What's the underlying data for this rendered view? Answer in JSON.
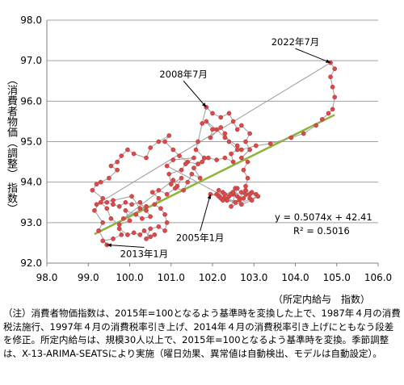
{
  "chart_data": {
    "type": "scatter",
    "ylabel": "（消費者物価（調整） 指数）",
    "xlabel": "（所定内給与　指数）",
    "xlim": [
      98.0,
      106.0
    ],
    "ylim": [
      92.0,
      98.0
    ],
    "xticks": [
      "98.0",
      "99.0",
      "100.0",
      "101.0",
      "102.0",
      "103.0",
      "104.0",
      "105.0",
      "106.0"
    ],
    "yticks": [
      "92.0",
      "93.0",
      "94.0",
      "95.0",
      "96.0",
      "97.0",
      "98.0"
    ],
    "grid": "horizontal",
    "point_color": "#d94a4a",
    "path_color": "#9e9e9e",
    "trend_color": "#8db33a",
    "trendline": {
      "slope": 0.5074,
      "intercept": 42.41,
      "x_range": [
        99.15,
        104.95
      ]
    },
    "equation": "y = 0.5074x + 42.41",
    "r2_label": "R² = 0.5016",
    "annotations": [
      {
        "text": "2022年7月",
        "x": 104.85,
        "y": 96.95,
        "tx": 104.0,
        "ty": 97.38
      },
      {
        "text": "2008年7月",
        "x": 101.85,
        "y": 95.85,
        "tx": 101.3,
        "ty": 96.58
      },
      {
        "text": "2005年1月",
        "x": 101.95,
        "y": 93.7,
        "tx": 101.7,
        "ty": 92.55
      },
      {
        "text": "2013年1月",
        "x": 99.45,
        "y": 92.45,
        "tx": 100.35,
        "ty": 92.15
      }
    ],
    "points": [
      [
        102.8,
        93.7
      ],
      [
        102.7,
        93.75
      ],
      [
        102.5,
        93.7
      ],
      [
        102.4,
        93.65
      ],
      [
        102.25,
        93.75
      ],
      [
        102.1,
        93.7
      ],
      [
        101.95,
        93.7
      ],
      [
        102.15,
        93.65
      ],
      [
        102.3,
        93.6
      ],
      [
        102.45,
        93.7
      ],
      [
        102.6,
        93.65
      ],
      [
        102.75,
        93.6
      ],
      [
        102.9,
        93.7
      ],
      [
        103.05,
        93.7
      ],
      [
        102.95,
        93.75
      ],
      [
        102.8,
        93.8
      ],
      [
        102.65,
        93.6
      ],
      [
        102.5,
        93.75
      ],
      [
        102.3,
        93.7
      ],
      [
        102.2,
        93.6
      ],
      [
        102.55,
        93.85
      ],
      [
        102.9,
        93.6
      ],
      [
        102.8,
        93.9
      ],
      [
        102.85,
        94.1
      ],
      [
        102.75,
        94.3
      ],
      [
        102.85,
        94.5
      ],
      [
        102.7,
        94.6
      ],
      [
        102.9,
        94.8
      ],
      [
        102.8,
        95.0
      ],
      [
        102.9,
        95.2
      ],
      [
        102.7,
        95.4
      ],
      [
        102.6,
        95.3
      ],
      [
        102.5,
        95.5
      ],
      [
        102.4,
        95.7
      ],
      [
        102.2,
        95.6
      ],
      [
        102.0,
        95.7
      ],
      [
        101.85,
        95.85
      ],
      [
        101.75,
        95.45
      ],
      [
        101.65,
        95.0
      ],
      [
        101.6,
        94.8
      ],
      [
        101.8,
        94.6
      ],
      [
        101.65,
        94.45
      ],
      [
        101.4,
        94.5
      ],
      [
        101.2,
        94.65
      ],
      [
        101.05,
        94.8
      ],
      [
        100.85,
        95.0
      ],
      [
        100.95,
        95.15
      ],
      [
        100.7,
        95.0
      ],
      [
        100.5,
        94.85
      ],
      [
        100.4,
        94.6
      ],
      [
        100.1,
        94.7
      ],
      [
        99.95,
        94.8
      ],
      [
        99.8,
        94.65
      ],
      [
        99.7,
        94.5
      ],
      [
        99.55,
        94.4
      ],
      [
        99.7,
        94.3
      ],
      [
        99.5,
        94.1
      ],
      [
        99.3,
        94.0
      ],
      [
        99.2,
        93.95
      ],
      [
        99.1,
        93.8
      ],
      [
        99.35,
        93.6
      ],
      [
        99.15,
        93.3
      ],
      [
        99.35,
        93.0
      ],
      [
        99.25,
        92.8
      ],
      [
        99.45,
        92.45
      ],
      [
        99.35,
        92.55
      ],
      [
        99.6,
        92.6
      ],
      [
        99.8,
        92.7
      ],
      [
        99.75,
        92.85
      ],
      [
        99.95,
        92.7
      ],
      [
        100.1,
        92.75
      ],
      [
        100.25,
        92.7
      ],
      [
        100.35,
        92.8
      ],
      [
        100.5,
        92.65
      ],
      [
        100.6,
        92.7
      ],
      [
        100.4,
        92.6
      ],
      [
        100.5,
        92.85
      ],
      [
        100.7,
        92.9
      ],
      [
        100.85,
        92.8
      ],
      [
        100.9,
        93.0
      ],
      [
        100.85,
        93.2
      ],
      [
        100.75,
        93.35
      ],
      [
        100.6,
        93.45
      ],
      [
        100.7,
        93.6
      ],
      [
        100.55,
        93.75
      ],
      [
        100.7,
        93.8
      ],
      [
        100.9,
        93.7
      ],
      [
        101.1,
        93.85
      ],
      [
        101.3,
        93.8
      ],
      [
        101.4,
        94.0
      ],
      [
        101.5,
        94.2
      ],
      [
        101.7,
        94.1
      ],
      [
        101.55,
        94.35
      ],
      [
        101.75,
        94.5
      ],
      [
        101.9,
        94.6
      ],
      [
        102.1,
        94.55
      ],
      [
        102.3,
        94.6
      ],
      [
        102.5,
        94.5
      ],
      [
        102.45,
        94.7
      ],
      [
        102.6,
        94.8
      ],
      [
        102.4,
        95.0
      ],
      [
        102.3,
        95.2
      ],
      [
        102.2,
        95.35
      ],
      [
        101.95,
        95.1
      ],
      [
        102.0,
        95.3
      ],
      [
        101.85,
        95.5
      ],
      [
        102.1,
        95.3
      ],
      [
        102.3,
        95.1
      ],
      [
        102.6,
        94.9
      ],
      [
        102.7,
        94.8
      ],
      [
        103.05,
        94.9
      ],
      [
        103.4,
        94.95
      ],
      [
        103.9,
        95.1
      ],
      [
        104.2,
        95.2
      ],
      [
        104.5,
        95.4
      ],
      [
        104.65,
        95.55
      ],
      [
        104.8,
        95.7
      ],
      [
        104.9,
        95.8
      ],
      [
        104.95,
        96.1
      ],
      [
        104.9,
        96.35
      ],
      [
        104.85,
        96.6
      ],
      [
        104.95,
        96.8
      ],
      [
        104.85,
        96.95
      ],
      [
        99.2,
        93.45
      ],
      [
        99.45,
        93.5
      ],
      [
        99.6,
        93.45
      ],
      [
        99.75,
        93.4
      ],
      [
        99.9,
        93.5
      ],
      [
        100.05,
        93.45
      ],
      [
        100.25,
        93.5
      ],
      [
        100.4,
        93.3
      ],
      [
        100.5,
        93.15
      ],
      [
        100.3,
        93.1
      ],
      [
        100.15,
        93.2
      ],
      [
        99.9,
        93.3
      ],
      [
        100.0,
        93.05
      ],
      [
        99.75,
        92.95
      ],
      [
        99.55,
        93.1
      ],
      [
        99.45,
        93.35
      ],
      [
        99.3,
        93.5
      ],
      [
        99.6,
        93.55
      ],
      [
        100.05,
        93.65
      ],
      [
        100.25,
        93.35
      ],
      [
        100.4,
        93.4
      ],
      [
        99.85,
        93.1
      ],
      [
        101.05,
        94.05
      ],
      [
        101.15,
        93.9
      ],
      [
        101.25,
        94.1
      ],
      [
        101.0,
        93.95
      ],
      [
        100.95,
        94.2
      ],
      [
        101.25,
        94.3
      ],
      [
        101.35,
        94.45
      ],
      [
        101.55,
        94.6
      ],
      [
        101.05,
        94.55
      ],
      [
        100.9,
        94.4
      ],
      [
        102.55,
        93.5
      ],
      [
        102.65,
        93.55
      ],
      [
        102.35,
        93.55
      ],
      [
        102.7,
        93.45
      ],
      [
        102.95,
        93.55
      ],
      [
        103.1,
        93.65
      ],
      [
        102.45,
        93.4
      ],
      [
        102.6,
        93.85
      ],
      [
        102.25,
        93.55
      ],
      [
        102.15,
        93.8
      ]
    ]
  }
}
